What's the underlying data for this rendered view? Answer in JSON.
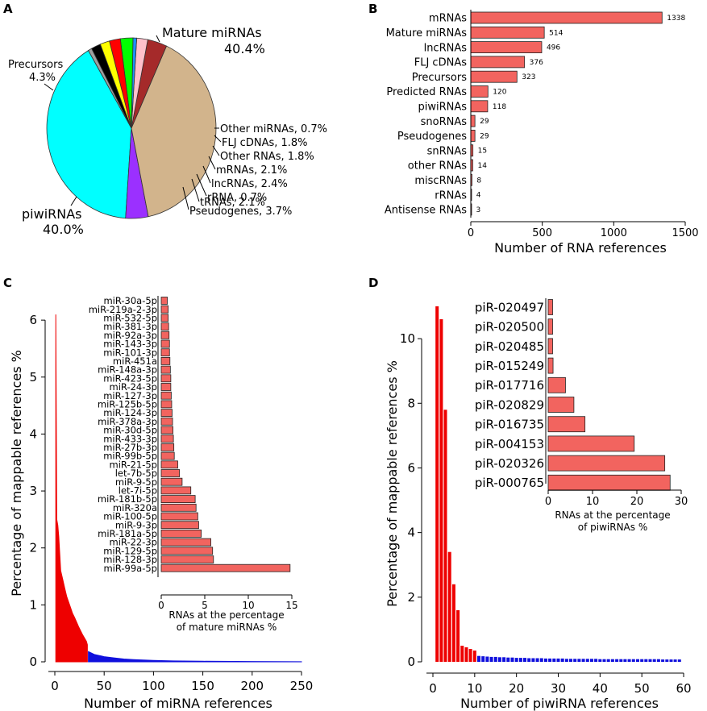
{
  "panels": {
    "a": "A",
    "b": "B",
    "c": "C",
    "d": "D"
  },
  "colors": {
    "bar": "#f2645f",
    "red": "#ee0000",
    "blue": "#1010dd",
    "pie": [
      "#00ffff",
      "#9b30ff",
      "#d2b48c",
      "#a52a2a",
      "#ffc0cb",
      "#1e90ff",
      "#00ff00",
      "#ff0000",
      "#ffff00",
      "#000000",
      "#a0a0a0"
    ]
  },
  "chart_data": [
    {
      "panel": "A",
      "type": "pie",
      "slices": [
        {
          "label": "Mature miRNAs",
          "pct_text": "40.4%",
          "value": 40.4
        },
        {
          "label": "Precursors",
          "pct_text": "4.3%",
          "value": 4.3
        },
        {
          "label": "piwiRNAs",
          "pct_text": "40.0%",
          "value": 40.0
        },
        {
          "label": "Pseudogenes, 3.7%",
          "value": 3.7
        },
        {
          "label": "tRNAs, 2.1%",
          "value": 2.1
        },
        {
          "label": "rRNA, 0.7%",
          "value": 0.7
        },
        {
          "label": "lncRNAs, 2.4%",
          "value": 2.4
        },
        {
          "label": "mRNAs, 2.1%",
          "value": 2.1
        },
        {
          "label": "Other RNAs, 1.8%",
          "value": 1.8
        },
        {
          "label": "FLJ cDNAs, 1.8%",
          "value": 1.8
        },
        {
          "label": "Other miRNAs, 0.7%",
          "value": 0.7
        }
      ]
    },
    {
      "panel": "B",
      "type": "bar",
      "orientation": "horizontal",
      "categories": [
        "mRNAs",
        "Mature miRNAs",
        "lncRNAs",
        "FLJ cDNAs",
        "Precursors",
        "Predicted RNAs",
        "piwiRNAs",
        "snoRNAs",
        "Pseudogenes",
        "snRNAs",
        "other RNAs",
        "miscRNAs",
        "rRNAs",
        "Antisense RNAs"
      ],
      "values": [
        1338,
        514,
        496,
        376,
        323,
        120,
        118,
        29,
        29,
        15,
        14,
        8,
        4,
        3
      ],
      "xlabel": "Number of RNA references",
      "xlim": [
        0,
        1500
      ],
      "xticks": [
        "0",
        "500",
        "1000",
        "1500"
      ]
    },
    {
      "panel": "C",
      "type": "area",
      "xlabel": "Number of miRNA references",
      "ylabel": "Percentage of mappable references %",
      "xlim": [
        0,
        250
      ],
      "ylim": [
        0,
        6.2
      ],
      "xticks": [
        "0",
        "50",
        "100",
        "150",
        "200",
        "250"
      ],
      "yticks": [
        "0",
        "1",
        "2",
        "3",
        "4",
        "5",
        "6"
      ],
      "series": [
        {
          "color": "red",
          "x": [
            1,
            2,
            3,
            4,
            5,
            6,
            8,
            10,
            12,
            14,
            16,
            18,
            20,
            22,
            24,
            26,
            28,
            30,
            32,
            33
          ],
          "y": [
            6.1,
            2.5,
            2.4,
            2.2,
            1.9,
            1.6,
            1.45,
            1.3,
            1.15,
            1.05,
            0.95,
            0.85,
            0.78,
            0.7,
            0.62,
            0.55,
            0.48,
            0.42,
            0.36,
            0.3
          ]
        },
        {
          "color": "blue",
          "x": [
            34,
            40,
            50,
            60,
            70,
            80,
            100,
            120,
            150,
            200,
            250
          ],
          "y": [
            0.18,
            0.13,
            0.09,
            0.07,
            0.05,
            0.04,
            0.025,
            0.015,
            0.01,
            0.005,
            0.002
          ]
        }
      ]
    },
    {
      "panel": "C-inset",
      "type": "bar",
      "orientation": "horizontal",
      "categories": [
        "miR-30a-5p",
        "miR-219a-2-3p",
        "miR-532-5p",
        "miR-381-3p",
        "miR-92a-3p",
        "miR-143-3p",
        "miR-101-3p",
        "miR-451a",
        "miR-148a-3p",
        "miR-423-5p",
        "miR-24-3p",
        "miR-127-3p",
        "miR-125b-5p",
        "miR-124-3p",
        "miR-378a-3p",
        "miR-30d-5p",
        "miR-433-3p",
        "miR-27b-3p",
        "miR-99b-5p",
        "miR-21-5p",
        "let-7b-5p",
        "miR-9-5p",
        "let-7i-5p",
        "miR-181b-5p",
        "miR-320a",
        "miR-100-5p",
        "miR-9-3p",
        "miR-181a-5p",
        "miR-22-3p",
        "miR-129-5p",
        "miR-128-3p",
        "miR-99a-5p"
      ],
      "values": [
        0.7,
        0.8,
        0.8,
        0.85,
        0.9,
        0.95,
        0.95,
        1.0,
        1.05,
        1.1,
        1.1,
        1.15,
        1.2,
        1.25,
        1.3,
        1.35,
        1.4,
        1.45,
        1.5,
        1.9,
        2.1,
        2.4,
        3.4,
        3.9,
        4.0,
        4.2,
        4.3,
        4.6,
        5.7,
        5.9,
        6.0,
        14.8
      ],
      "xlabel": "RNAs at the percentage of mature miRNAs %",
      "xlabel_lines": [
        "RNAs at the percentage",
        "of mature miRNAs %"
      ],
      "xlim": [
        0,
        15
      ],
      "xticks": [
        "0",
        "5",
        "10",
        "15"
      ]
    },
    {
      "panel": "D",
      "type": "bar",
      "xlabel": "Number of piwiRNA references",
      "ylabel": "Percentage of mappable references %",
      "xlim": [
        0,
        60
      ],
      "ylim": [
        0,
        11
      ],
      "xticks": [
        "0",
        "10",
        "20",
        "30",
        "40",
        "50",
        "60"
      ],
      "yticks": [
        "0",
        "2",
        "4",
        "6",
        "8",
        "10"
      ],
      "series": [
        {
          "color": "red",
          "x": [
            1,
            2,
            3,
            4,
            5,
            6,
            7,
            8,
            9,
            10
          ],
          "y": [
            11.0,
            10.6,
            7.8,
            3.4,
            2.4,
            1.6,
            0.5,
            0.45,
            0.4,
            0.35
          ]
        },
        {
          "color": "blue",
          "x": [
            11,
            12,
            13,
            14,
            15,
            16,
            17,
            18,
            19,
            20,
            21,
            22,
            23,
            24,
            25,
            26,
            27,
            28,
            29,
            30,
            31,
            32,
            33,
            34,
            35,
            36,
            37,
            38,
            39,
            40,
            41,
            42,
            43,
            44,
            45,
            46,
            47,
            48,
            49,
            50,
            51,
            52,
            53,
            54,
            55,
            56,
            57,
            58,
            59
          ],
          "y": [
            0.12,
            0.11,
            0.1,
            0.09,
            0.09,
            0.08,
            0.08,
            0.07,
            0.07,
            0.06,
            0.06,
            0.06,
            0.05,
            0.05,
            0.05,
            0.05,
            0.04,
            0.04,
            0.04,
            0.04,
            0.04,
            0.03,
            0.03,
            0.03,
            0.03,
            0.03,
            0.03,
            0.03,
            0.03,
            0.02,
            0.02,
            0.02,
            0.02,
            0.02,
            0.02,
            0.02,
            0.02,
            0.02,
            0.02,
            0.02,
            0.02,
            0.02,
            0.02,
            0.02,
            0.01,
            0.01,
            0.01,
            0.01,
            0.01
          ]
        }
      ]
    },
    {
      "panel": "D-inset",
      "type": "bar",
      "orientation": "horizontal",
      "categories": [
        "piR-020497",
        "piR-020500",
        "piR-020485",
        "piR-015249",
        "piR-017716",
        "piR-020829",
        "piR-016735",
        "piR-004153",
        "piR-020326",
        "piR-000765"
      ],
      "values": [
        1.0,
        1.0,
        1.0,
        1.1,
        3.9,
        5.8,
        8.3,
        19.4,
        26.3,
        27.5
      ],
      "xlabel": "RNAs at the percentage of piwiRNAs %",
      "xlabel_lines": [
        "RNAs at the percentage",
        "of piwiRNAs %"
      ],
      "xlim": [
        0,
        30
      ],
      "xticks": [
        "0",
        "10",
        "20",
        "30"
      ]
    }
  ]
}
